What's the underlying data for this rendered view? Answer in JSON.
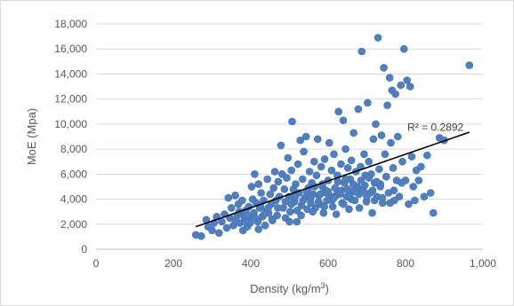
{
  "chart_data": {
    "type": "scatter",
    "xlabel": "Density (kg/m",
    "xlabel_sup": "3",
    "xlabel_end": ")",
    "ylabel": "MoE (Mpa)",
    "xlim": [
      0,
      1000
    ],
    "ylim": [
      0,
      18000
    ],
    "xticks": [
      0,
      200,
      400,
      600,
      800,
      1000
    ],
    "xtick_labels": [
      "0",
      "200",
      "400",
      "600",
      "800",
      "1,000"
    ],
    "yticks": [
      0,
      2000,
      4000,
      6000,
      8000,
      10000,
      12000,
      14000,
      16000,
      18000
    ],
    "ytick_labels": [
      "0",
      "2,000",
      "4,000",
      "6,000",
      "8,000",
      "10,000",
      "12,000",
      "14,000",
      "16,000",
      "18,000"
    ],
    "grid": "horizontal",
    "point_color": "#4f7fbf",
    "trendline": {
      "label": "R² = 0.2892",
      "points": [
        [
          258,
          1800
        ],
        [
          965,
          9350
        ]
      ]
    },
    "series": [
      {
        "points": [
          [
            258,
            1150
          ],
          [
            272,
            1050
          ],
          [
            285,
            2350
          ],
          [
            290,
            1800
          ],
          [
            300,
            1500
          ],
          [
            305,
            2100
          ],
          [
            312,
            2600
          ],
          [
            318,
            1300
          ],
          [
            325,
            2200
          ],
          [
            332,
            2800
          ],
          [
            338,
            1700
          ],
          [
            342,
            4100
          ],
          [
            346,
            2500
          ],
          [
            350,
            3300
          ],
          [
            355,
            1900
          ],
          [
            360,
            4300
          ],
          [
            365,
            2700
          ],
          [
            368,
            3600
          ],
          [
            372,
            2100
          ],
          [
            378,
            3900
          ],
          [
            383,
            2600
          ],
          [
            387,
            3100
          ],
          [
            391,
            1800
          ],
          [
            395,
            3400
          ],
          [
            398,
            2400
          ],
          [
            402,
            5000
          ],
          [
            405,
            4000
          ],
          [
            408,
            2900
          ],
          [
            410,
            6000
          ],
          [
            414,
            3700
          ],
          [
            418,
            2200
          ],
          [
            420,
            5200
          ],
          [
            423,
            3300
          ],
          [
            427,
            4500
          ],
          [
            430,
            2600
          ],
          [
            433,
            3900
          ],
          [
            437,
            1900
          ],
          [
            440,
            3100
          ],
          [
            443,
            5600
          ],
          [
            446,
            2900
          ],
          [
            450,
            4400
          ],
          [
            453,
            3600
          ],
          [
            456,
            2300
          ],
          [
            459,
            4900
          ],
          [
            462,
            6200
          ],
          [
            465,
            3900
          ],
          [
            468,
            2700
          ],
          [
            471,
            5400
          ],
          [
            474,
            4200
          ],
          [
            478,
            8300
          ],
          [
            481,
            6000
          ],
          [
            484,
            3300
          ],
          [
            487,
            4800
          ],
          [
            490,
            2500
          ],
          [
            493,
            5700
          ],
          [
            496,
            7300
          ],
          [
            499,
            4200
          ],
          [
            502,
            3000
          ],
          [
            505,
            6300
          ],
          [
            507,
            10200
          ],
          [
            510,
            4800
          ],
          [
            513,
            3800
          ],
          [
            516,
            5200
          ],
          [
            519,
            2200
          ],
          [
            522,
            6800
          ],
          [
            525,
            4500
          ],
          [
            528,
            8700
          ],
          [
            531,
            3500
          ],
          [
            534,
            5600
          ],
          [
            537,
            7800
          ],
          [
            540,
            4100
          ],
          [
            543,
            9000
          ],
          [
            546,
            3200
          ],
          [
            549,
            4900
          ],
          [
            552,
            6200
          ],
          [
            555,
            3700
          ],
          [
            558,
            5300
          ],
          [
            561,
            4400
          ],
          [
            564,
            7000
          ],
          [
            567,
            3300
          ],
          [
            570,
            5900
          ],
          [
            573,
            8800
          ],
          [
            576,
            4300
          ],
          [
            579,
            3600
          ],
          [
            582,
            6600
          ],
          [
            585,
            5000
          ],
          [
            588,
            2900
          ],
          [
            591,
            7200
          ],
          [
            594,
            4700
          ],
          [
            597,
            3900
          ],
          [
            600,
            5500
          ],
          [
            603,
            8500
          ],
          [
            606,
            4200
          ],
          [
            609,
            6300
          ],
          [
            612,
            3400
          ],
          [
            615,
            7600
          ],
          [
            618,
            4900
          ],
          [
            621,
            2800
          ],
          [
            624,
            5900
          ],
          [
            627,
            11000
          ],
          [
            630,
            4600
          ],
          [
            633,
            6800
          ],
          [
            636,
            3700
          ],
          [
            639,
            10300
          ],
          [
            642,
            5300
          ],
          [
            645,
            8000
          ],
          [
            648,
            4200
          ],
          [
            651,
            6500
          ],
          [
            654,
            3200
          ],
          [
            657,
            5600
          ],
          [
            660,
            7100
          ],
          [
            663,
            4600
          ],
          [
            666,
            9300
          ],
          [
            669,
            3900
          ],
          [
            672,
            6200
          ],
          [
            675,
            5000
          ],
          [
            678,
            11200
          ],
          [
            681,
            3300
          ],
          [
            684,
            6600
          ],
          [
            687,
            15800
          ],
          [
            690,
            4800
          ],
          [
            693,
            7600
          ],
          [
            696,
            5900
          ],
          [
            699,
            3800
          ],
          [
            702,
            11700
          ],
          [
            705,
            7000
          ],
          [
            708,
            4500
          ],
          [
            711,
            6000
          ],
          [
            714,
            2900
          ],
          [
            717,
            8800
          ],
          [
            720,
            5300
          ],
          [
            723,
            10000
          ],
          [
            726,
            4200
          ],
          [
            729,
            16900
          ],
          [
            732,
            6400
          ],
          [
            735,
            5000
          ],
          [
            738,
            9100
          ],
          [
            741,
            3700
          ],
          [
            744,
            14500
          ],
          [
            747,
            7600
          ],
          [
            750,
            5800
          ],
          [
            753,
            11500
          ],
          [
            756,
            4500
          ],
          [
            759,
            13700
          ],
          [
            762,
            8500
          ],
          [
            765,
            12700
          ],
          [
            768,
            6500
          ],
          [
            771,
            3900
          ],
          [
            774,
            12400
          ],
          [
            777,
            5500
          ],
          [
            780,
            9000
          ],
          [
            784,
            4200
          ],
          [
            788,
            13100
          ],
          [
            792,
            7000
          ],
          [
            796,
            16000
          ],
          [
            800,
            5500
          ],
          [
            804,
            13500
          ],
          [
            808,
            3600
          ],
          [
            812,
            13000
          ],
          [
            816,
            7400
          ],
          [
            820,
            5000
          ],
          [
            824,
            3900
          ],
          [
            828,
            6300
          ],
          [
            834,
            5500
          ],
          [
            840,
            6600
          ],
          [
            848,
            4200
          ],
          [
            856,
            7500
          ],
          [
            865,
            4500
          ],
          [
            872,
            2900
          ],
          [
            888,
            8900
          ],
          [
            900,
            8700
          ],
          [
            965,
            14700
          ],
          [
            420,
            1600
          ],
          [
            398,
            2100
          ],
          [
            380,
            1500
          ],
          [
            455,
            2400
          ],
          [
            520,
            3100
          ],
          [
            560,
            3000
          ],
          [
            590,
            3400
          ],
          [
            610,
            3900
          ],
          [
            620,
            4300
          ],
          [
            640,
            3600
          ],
          [
            660,
            4000
          ],
          [
            680,
            4400
          ],
          [
            700,
            4200
          ],
          [
            720,
            3900
          ],
          [
            740,
            4100
          ],
          [
            760,
            3700
          ],
          [
            500,
            2200
          ],
          [
            530,
            2700
          ],
          [
            575,
            3800
          ],
          [
            595,
            4500
          ],
          [
            615,
            4100
          ],
          [
            635,
            4700
          ],
          [
            655,
            4300
          ],
          [
            675,
            4900
          ],
          [
            695,
            5100
          ],
          [
            715,
            4700
          ],
          [
            735,
            5200
          ],
          [
            770,
            4700
          ],
          [
            790,
            5300
          ],
          [
            545,
            4600
          ],
          [
            565,
            5000
          ],
          [
            585,
            5200
          ],
          [
            625,
            5400
          ],
          [
            645,
            5600
          ],
          [
            665,
            5200
          ],
          [
            685,
            5500
          ],
          [
            705,
            5700
          ],
          [
            725,
            5400
          ],
          [
            360,
            2300
          ],
          [
            370,
            3000
          ],
          [
            385,
            2200
          ],
          [
            392,
            2700
          ],
          [
            412,
            2500
          ],
          [
            425,
            3500
          ],
          [
            435,
            2800
          ],
          [
            445,
            3300
          ],
          [
            470,
            3300
          ],
          [
            490,
            3800
          ],
          [
            505,
            3600
          ],
          [
            515,
            4200
          ],
          [
            535,
            3900
          ],
          [
            555,
            4100
          ],
          [
            580,
            4400
          ],
          [
            600,
            4600
          ],
          [
            630,
            4400
          ],
          [
            650,
            4800
          ],
          [
            670,
            4600
          ],
          [
            690,
            4600
          ]
        ]
      }
    ]
  }
}
